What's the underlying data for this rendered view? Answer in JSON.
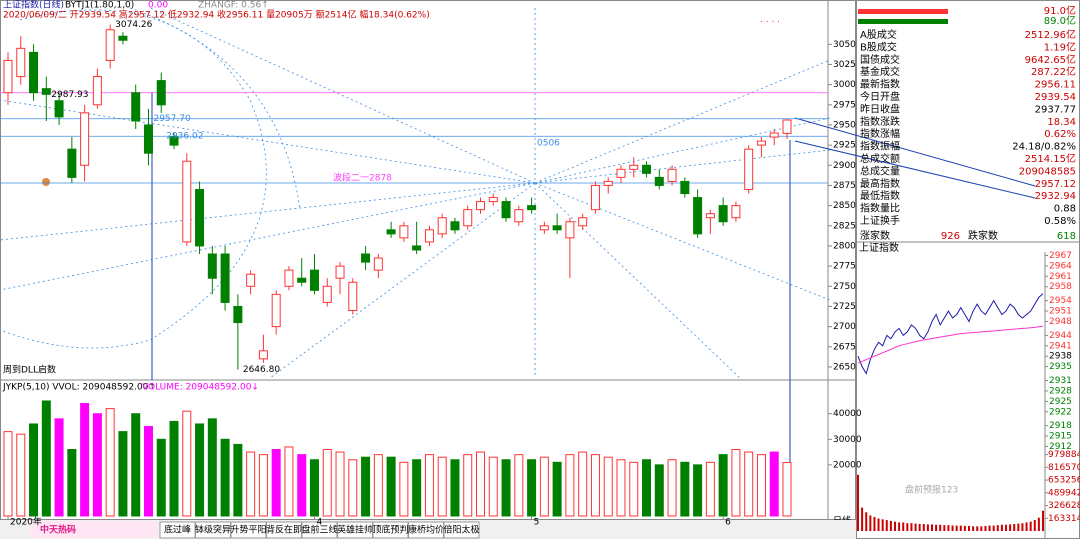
{
  "header": {
    "title": "上证指数(日线)",
    "info": "2020/06/09/二 开2939.54 高2957.12 低2932.94 收2956.11 量20905万 额2514亿 幅18.34(0.62%)",
    "indicator": "BYTJ1(1.80,1,0)",
    "indicator_value": "0.00",
    "zhangf": "ZHANGF: 0.56↑"
  },
  "chart_data": [
    {
      "type": "candlestick",
      "up_color": "#ff3333",
      "down_color": "#008000",
      "categories": [
        "2020年",
        null,
        null,
        null,
        null,
        null,
        null,
        null,
        null,
        null,
        null,
        null,
        null,
        null,
        null,
        null,
        null,
        null,
        null,
        null,
        null,
        null,
        null,
        null,
        "4",
        null,
        null,
        null,
        null,
        null,
        null,
        null,
        null,
        null,
        null,
        null,
        null,
        null,
        null,
        null,
        null,
        "5",
        null,
        null,
        null,
        null,
        null,
        null,
        null,
        null,
        null,
        null,
        null,
        null,
        null,
        null,
        "6",
        null,
        null,
        null,
        null,
        null
      ],
      "open": [
        2990,
        3010,
        3040,
        2995,
        2980,
        2920,
        2900,
        2975,
        3030,
        3060,
        2990,
        2950,
        3005,
        2935,
        2805,
        2870,
        2790,
        2790,
        2725,
        2750,
        2660,
        2700,
        2750,
        2760,
        2770,
        2730,
        2760,
        2720,
        2790,
        2770,
        2820,
        2810,
        2800,
        2805,
        2815,
        2830,
        2825,
        2845,
        2855,
        2855,
        2830,
        2850,
        2820,
        2825,
        2810,
        2825,
        2845,
        2875,
        2885,
        2895,
        2900,
        2885,
        2880,
        2880,
        2860,
        2835,
        2850,
        2835,
        2870,
        2925,
        2935,
        2939.54
      ],
      "high": [
        3040,
        3060,
        3050,
        3010,
        2990,
        2935,
        2975,
        3020,
        3074.26,
        3065,
        3000,
        2970,
        3015,
        2940,
        2915,
        2880,
        2800,
        2800,
        2740,
        2770,
        2690,
        2745,
        2775,
        2785,
        2790,
        2760,
        2780,
        2760,
        2800,
        2790,
        2830,
        2830,
        2830,
        2825,
        2840,
        2835,
        2850,
        2860,
        2865,
        2860,
        2850,
        2860,
        2830,
        2840,
        2835,
        2840,
        2880,
        2885,
        2900,
        2910,
        2905,
        2895,
        2900,
        2885,
        2870,
        2845,
        2860,
        2855,
        2925,
        2935,
        2945,
        2957.12
      ],
      "low": [
        2975,
        3000,
        2980,
        2955,
        2950,
        2878,
        2880,
        2970,
        3020,
        3050,
        2945,
        2900,
        2965,
        2920,
        2800,
        2790,
        2740,
        2720,
        2646.8,
        2740,
        2655,
        2690,
        2745,
        2750,
        2740,
        2725,
        2740,
        2715,
        2770,
        2760,
        2810,
        2805,
        2790,
        2800,
        2810,
        2815,
        2820,
        2840,
        2850,
        2830,
        2825,
        2840,
        2815,
        2815,
        2760,
        2820,
        2840,
        2865,
        2878,
        2885,
        2885,
        2870,
        2875,
        2860,
        2810,
        2815,
        2825,
        2830,
        2865,
        2910,
        2925,
        2932.94
      ],
      "close": [
        3030,
        3045,
        2990,
        2988,
        2960,
        2885,
        2965,
        3010,
        3068,
        3055,
        2955,
        2915,
        2975,
        2925,
        2905,
        2800,
        2760,
        2730,
        2705,
        2765,
        2670,
        2740,
        2770,
        2755,
        2745,
        2750,
        2775,
        2755,
        2780,
        2785,
        2815,
        2825,
        2795,
        2820,
        2835,
        2820,
        2845,
        2855,
        2860,
        2835,
        2845,
        2845,
        2825,
        2820,
        2830,
        2835,
        2875,
        2880,
        2895,
        2900,
        2890,
        2875,
        2895,
        2865,
        2815,
        2840,
        2830,
        2850,
        2920,
        2930,
        2940,
        2956.11
      ],
      "ylim": [
        2640,
        3095
      ],
      "yticks": [
        2650,
        2675,
        2700,
        2725,
        2750,
        2775,
        2800,
        2825,
        2850,
        2875,
        2900,
        2925,
        2950,
        2975,
        3000,
        3025,
        3050
      ],
      "hlines": [
        {
          "value": 2878,
          "color": "#3a8ee6"
        },
        {
          "value": 2990,
          "color": "#ff66ff"
        },
        {
          "value": 2957.7,
          "color": "#3a8ee6"
        },
        {
          "value": 2936.02,
          "color": "#3a8ee6"
        }
      ],
      "annotations": [
        {
          "label": "3074.26",
          "value": 3074.26,
          "index": 8,
          "color": "#000000"
        },
        {
          "label": "2987.93",
          "value": 2987.93,
          "index": 3,
          "color": "#000000"
        },
        {
          "label": "2646.80",
          "value": 2646.8,
          "index": 18,
          "color": "#000000"
        },
        {
          "label": "2957.70",
          "value": 2957.7,
          "index": 11,
          "color": "#3a8ee6"
        },
        {
          "label": "2936.02",
          "value": 2936.02,
          "index": 12,
          "color": "#3a8ee6"
        }
      ],
      "notes": [
        "0506",
        "波段二一2878",
        "周到DLL启数"
      ]
    },
    {
      "type": "bar",
      "title": "JYKP(5,10) VVOL: 209048592.00↑",
      "subtitle": "VOLUME: 209048592.00↓",
      "values": [
        33000,
        32000,
        36000,
        45000,
        38000,
        26000,
        44000,
        40000,
        42000,
        33000,
        40000,
        35000,
        30000,
        37000,
        41000,
        36000,
        38000,
        30000,
        28000,
        25000,
        24000,
        26000,
        27000,
        24000,
        22000,
        26000,
        25000,
        22000,
        23000,
        24000,
        23000,
        21000,
        22000,
        24000,
        23000,
        22000,
        24000,
        25000,
        23000,
        22000,
        24000,
        22000,
        23000,
        21000,
        24000,
        25000,
        24000,
        23000,
        22000,
        21000,
        22000,
        20000,
        22000,
        21000,
        20000,
        21000,
        24000,
        26000,
        25000,
        24000,
        25000,
        20905
      ],
      "colors": [
        "#ff3333",
        "#ff3333",
        "#008000",
        "#008000",
        "#ff00ff",
        "#008000",
        "#ff00ff",
        "#ff00ff",
        "#ff3333",
        "#008000",
        "#008000",
        "#ff00ff",
        "#008000",
        "#008000",
        "#ff3333",
        "#008000",
        "#008000",
        "#008000",
        "#008000",
        "#ff3333",
        "#ff3333",
        "#ff00ff",
        "#ff3333",
        "#ff00ff",
        "#008000",
        "#ff3333",
        "#ff3333",
        "#ff3333",
        "#008000",
        "#ff3333",
        "#008000",
        "#ff3333",
        "#008000",
        "#ff3333",
        "#ff3333",
        "#008000",
        "#ff3333",
        "#ff3333",
        "#ff3333",
        "#008000",
        "#ff3333",
        "#008000",
        "#ff3333",
        "#008000",
        "#ff3333",
        "#ff3333",
        "#ff3333",
        "#ff3333",
        "#ff3333",
        "#ff3333",
        "#008000",
        "#008000",
        "#ff3333",
        "#008000",
        "#008000",
        "#ff3333",
        "#008000",
        "#ff3333",
        "#ff3333",
        "#ff3333",
        "#ff00ff",
        "#ff3333"
      ],
      "hollow_color": "#ff3333",
      "ylim": [
        0,
        48500
      ],
      "yticks": [
        20000,
        30000,
        40000
      ],
      "period": "日线"
    },
    {
      "type": "line",
      "title": "上证指数",
      "series": [
        {
          "color": "#1a1aa6",
          "values": [
            2938,
            2935,
            2933,
            2937,
            2940,
            2942,
            2941,
            2944,
            2943,
            2945,
            2946,
            2944,
            2945,
            2947,
            2946,
            2944,
            2943,
            2945,
            2948,
            2950,
            2947,
            2949,
            2951,
            2949,
            2950,
            2952,
            2950,
            2948,
            2951,
            2953,
            2951,
            2950,
            2952,
            2954,
            2952,
            2950,
            2951,
            2953,
            2952,
            2950,
            2949,
            2950,
            2951,
            2953,
            2955,
            2956
          ]
        },
        {
          "color": "#ff33cc",
          "values": [
            2936,
            2936.5,
            2937,
            2937.5,
            2938,
            2938.5,
            2939,
            2939.5,
            2940,
            2940.5,
            2941,
            2941.3,
            2941.6,
            2941.9,
            2942.2,
            2942.5,
            2942.7,
            2942.9,
            2943.1,
            2943.3,
            2943.5,
            2943.7,
            2943.9,
            2944.1,
            2944.3,
            2944.5,
            2944.6,
            2944.7,
            2944.8,
            2944.9,
            2945,
            2945.1,
            2945.2,
            2945.3,
            2945.4,
            2945.5,
            2945.6,
            2945.7,
            2945.8,
            2945.9,
            2946,
            2946.1,
            2946.2,
            2946.3,
            2946.5,
            2946.7
          ]
        },
        {
          "type": "bar",
          "axis": "y2",
          "color": "#cc0000",
          "values": [
            720000,
            300000,
            240000,
            200000,
            180000,
            160000,
            150000,
            140000,
            130000,
            120000,
            110000,
            110000,
            100000,
            100000,
            95000,
            90000,
            90000,
            85000,
            85000,
            80000,
            80000,
            75000,
            75000,
            70000,
            70000,
            70000,
            65000,
            65000,
            60000,
            60000,
            60000,
            65000,
            70000,
            70000,
            75000,
            80000,
            80000,
            85000,
            90000,
            95000,
            100000,
            110000,
            120000,
            140000,
            170000,
            260000
          ]
        }
      ],
      "ylim": [
        2911,
        2968
      ],
      "yticks": [
        2967,
        2964,
        2961,
        2958,
        2954,
        2951,
        2948,
        2944,
        2941,
        2938,
        2935,
        2931,
        2928,
        2925,
        2922,
        2918,
        2915,
        2912
      ],
      "ytick_colors": [
        "#ff3333",
        "#ff3333",
        "#ff3333",
        "#ff3333",
        "#ff3333",
        "#ff3333",
        "#ff3333",
        "#ff3333",
        "#ff3333",
        "#000000",
        "#008000",
        "#008000",
        "#008000",
        "#008000",
        "#008000",
        "#008000",
        "#008000",
        "#008000"
      ],
      "y2lim": [
        0,
        1013000
      ],
      "y2ticks": [
        979884,
        816570,
        653256,
        489942,
        326628,
        163314
      ]
    }
  ],
  "side_panel": {
    "bars": [
      "91.0亿",
      "89.0亿"
    ],
    "rows": [
      {
        "label": "A股成交",
        "value": "2512.96亿",
        "color": "#cc0000"
      },
      {
        "label": "B股成交",
        "value": "1.19亿",
        "color": "#cc0000"
      },
      {
        "label": "国债成交",
        "value": "9642.65亿",
        "color": "#cc0000"
      },
      {
        "label": "基金成交",
        "value": "287.22亿",
        "color": "#cc0000"
      },
      {
        "label": "最新指数",
        "value": "2956.11",
        "color": "#cc0000"
      },
      {
        "label": "今日开盘",
        "value": "2939.54",
        "color": "#cc0000"
      },
      {
        "label": "昨日收盘",
        "value": "2937.77",
        "color": "#000000"
      },
      {
        "label": "指数涨跌",
        "value": "18.34",
        "color": "#cc0000"
      },
      {
        "label": "指数涨幅",
        "value": "0.62%",
        "color": "#cc0000"
      },
      {
        "label": "指数振幅",
        "value": "24.18/0.82%",
        "color": "#000000"
      },
      {
        "label": "总成交额",
        "value": "2514.15亿",
        "color": "#cc0000"
      },
      {
        "label": "总成交量",
        "value": "209048585",
        "color": "#cc0000"
      },
      {
        "label": "最高指数",
        "value": "2957.12",
        "color": "#cc0000"
      },
      {
        "label": "最低指数",
        "value": "2932.94",
        "color": "#cc0000"
      },
      {
        "label": "指数量比",
        "value": "0.88",
        "color": "#000000"
      },
      {
        "label": "上证换手",
        "value": "0.58%",
        "color": "#000000"
      }
    ],
    "breadth": {
      "up_label": "涨家数",
      "up": "926",
      "down_label": "跌家数",
      "down": "618"
    }
  },
  "toolbar": {
    "logo": "中天热码",
    "tabs": [
      "底过峰",
      "钵级突异",
      "升势平阳",
      "背反在即",
      "盘前三线",
      "英雄挂帅",
      "顶底预判",
      "康桥均价",
      "倍阳太极"
    ]
  },
  "watermark": "盘前预报123"
}
